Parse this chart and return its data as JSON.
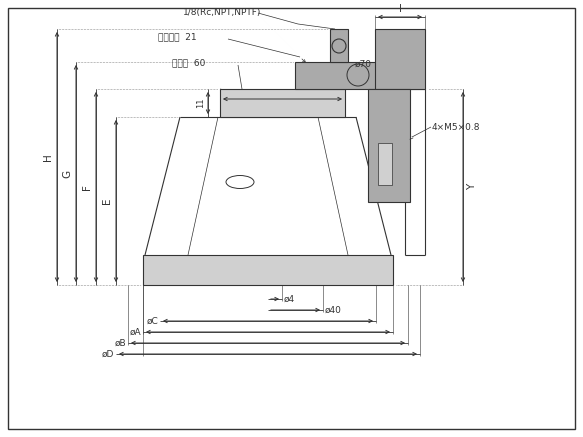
{
  "bg_color": "#ffffff",
  "line_color": "#333333",
  "gray_fill": "#aaaaaa",
  "light_gray": "#d0d0d0",
  "annotations": {
    "pipe_thread": "1/8(Rc,NPT,NPTF)",
    "hex_label": "六角対辺  21",
    "width_label": "二面幅  60",
    "dim_11": "11",
    "dim_I": "I",
    "dim_70": "ø70",
    "dim_4xM5": "4×M5×0.8",
    "dim_4": "ø4",
    "dim_40": "ø40",
    "dim_C": "øC",
    "dim_A": "øA",
    "dim_B": "øB",
    "dim_D": "øD",
    "dim_H": "H",
    "dim_G": "G",
    "dim_F": "F",
    "dim_E": "E",
    "dim_Y": "Y"
  }
}
